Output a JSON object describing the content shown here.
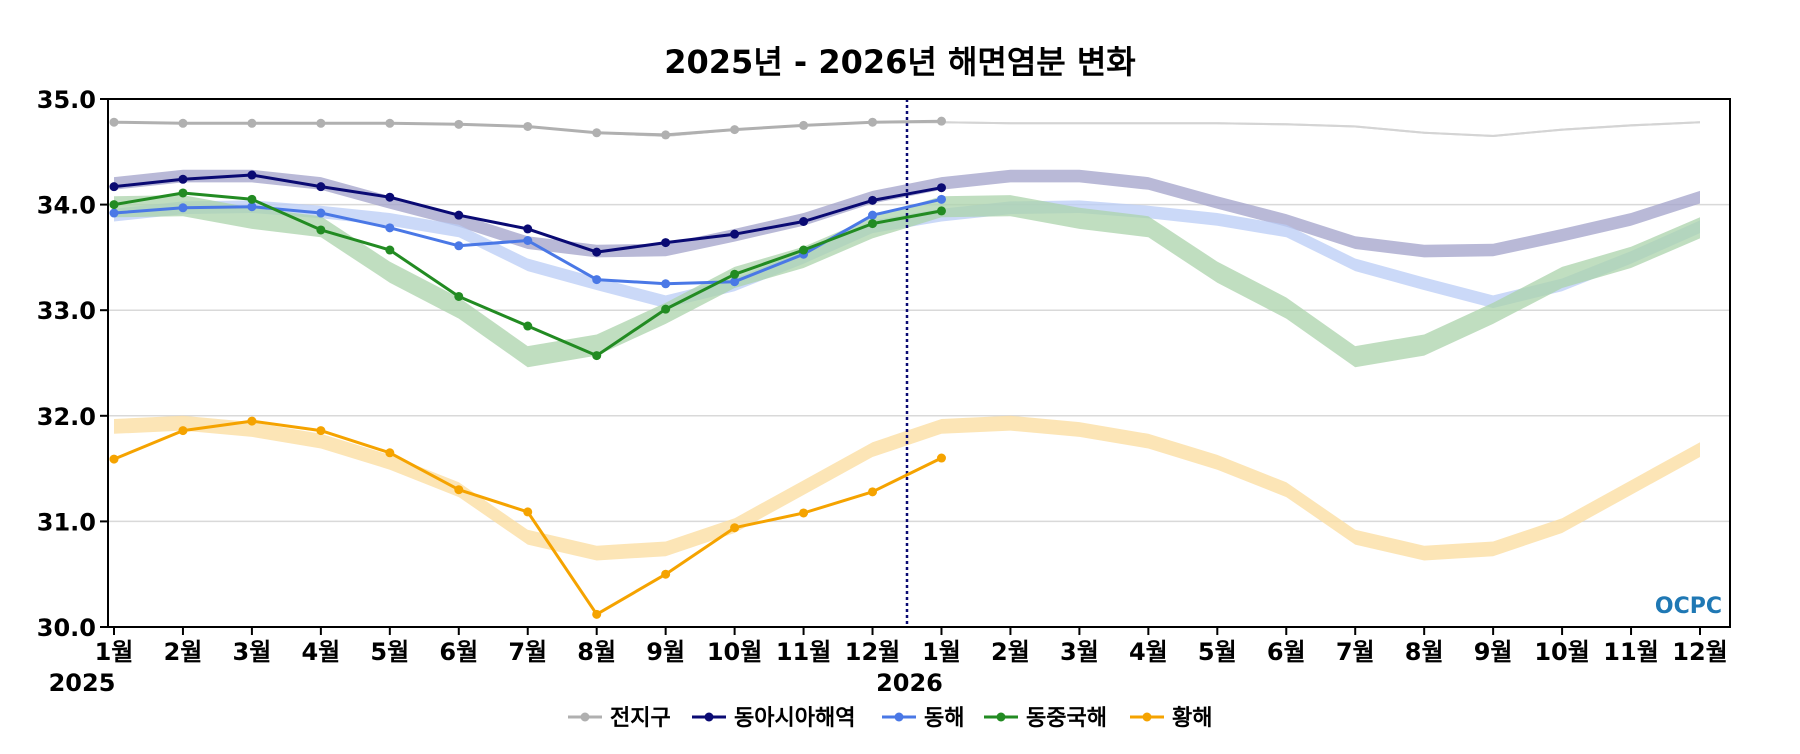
{
  "chart_data": {
    "type": "line",
    "title": "2025년 - 2026년 해면염분 변화",
    "ylim": [
      30.0,
      35.0
    ],
    "yticks": [
      "30.0",
      "31.0",
      "32.0",
      "33.0",
      "34.0",
      "35.0"
    ],
    "xticks": [
      "1월",
      "2월",
      "3월",
      "4월",
      "5월",
      "6월",
      "7월",
      "8월",
      "9월",
      "10월",
      "11월",
      "12월",
      "1월",
      "2월",
      "3월",
      "4월",
      "5월",
      "6월",
      "7월",
      "8월",
      "9월",
      "10월",
      "11월",
      "12월"
    ],
    "year_labels": [
      "2025",
      "2026"
    ],
    "grid": true,
    "legend_position": "bottom-center",
    "logo": "OCPC",
    "series": [
      {
        "name": "전지구",
        "color": "#b0b0b0",
        "values": [
          34.78,
          34.77,
          34.77,
          34.77,
          34.77,
          34.76,
          34.74,
          34.68,
          34.66,
          34.71,
          34.75,
          34.78,
          34.79
        ],
        "climatology": [
          34.78,
          34.77,
          34.77,
          34.77,
          34.77,
          34.76,
          34.74,
          34.68,
          34.65,
          34.71,
          34.75,
          34.78
        ],
        "band_half": 0.01
      },
      {
        "name": "동아시아해역",
        "color": "#0a0a73",
        "values": [
          34.17,
          34.24,
          34.28,
          34.17,
          34.07,
          33.9,
          33.77,
          33.55,
          33.64,
          33.72,
          33.84,
          34.04,
          34.16
        ],
        "climatology": [
          34.2,
          34.27,
          34.27,
          34.2,
          34.02,
          33.85,
          33.64,
          33.56,
          33.57,
          33.71,
          33.86,
          34.07
        ],
        "band_half": 0.06
      },
      {
        "name": "동해",
        "color": "#4a78e6",
        "values": [
          33.92,
          33.97,
          33.98,
          33.92,
          33.78,
          33.61,
          33.66,
          33.29,
          33.25,
          33.27,
          33.53,
          33.9,
          34.05
        ],
        "climatology": [
          33.9,
          33.97,
          33.98,
          33.93,
          33.86,
          33.75,
          33.43,
          33.25,
          33.08,
          33.24,
          33.5,
          33.79
        ],
        "band_half": 0.06
      },
      {
        "name": "동중국해",
        "color": "#228b22",
        "values": [
          34.0,
          34.11,
          34.05,
          33.76,
          33.57,
          33.13,
          32.85,
          32.57,
          33.01,
          33.34,
          33.57,
          33.82,
          33.94
        ],
        "climatology": [
          33.98,
          33.99,
          33.87,
          33.79,
          33.36,
          33.02,
          32.56,
          32.67,
          32.97,
          33.31,
          33.5,
          33.78
        ],
        "band_half": 0.1
      },
      {
        "name": "황해",
        "color": "#f5a300",
        "values": [
          31.59,
          31.86,
          31.95,
          31.86,
          31.65,
          31.3,
          31.09,
          30.12,
          30.5,
          30.94,
          31.08,
          31.28,
          31.6
        ],
        "climatology": [
          31.9,
          31.93,
          31.87,
          31.76,
          31.56,
          31.3,
          30.85,
          30.7,
          30.74,
          30.96,
          31.32,
          31.68
        ],
        "band_half": 0.07
      }
    ]
  }
}
